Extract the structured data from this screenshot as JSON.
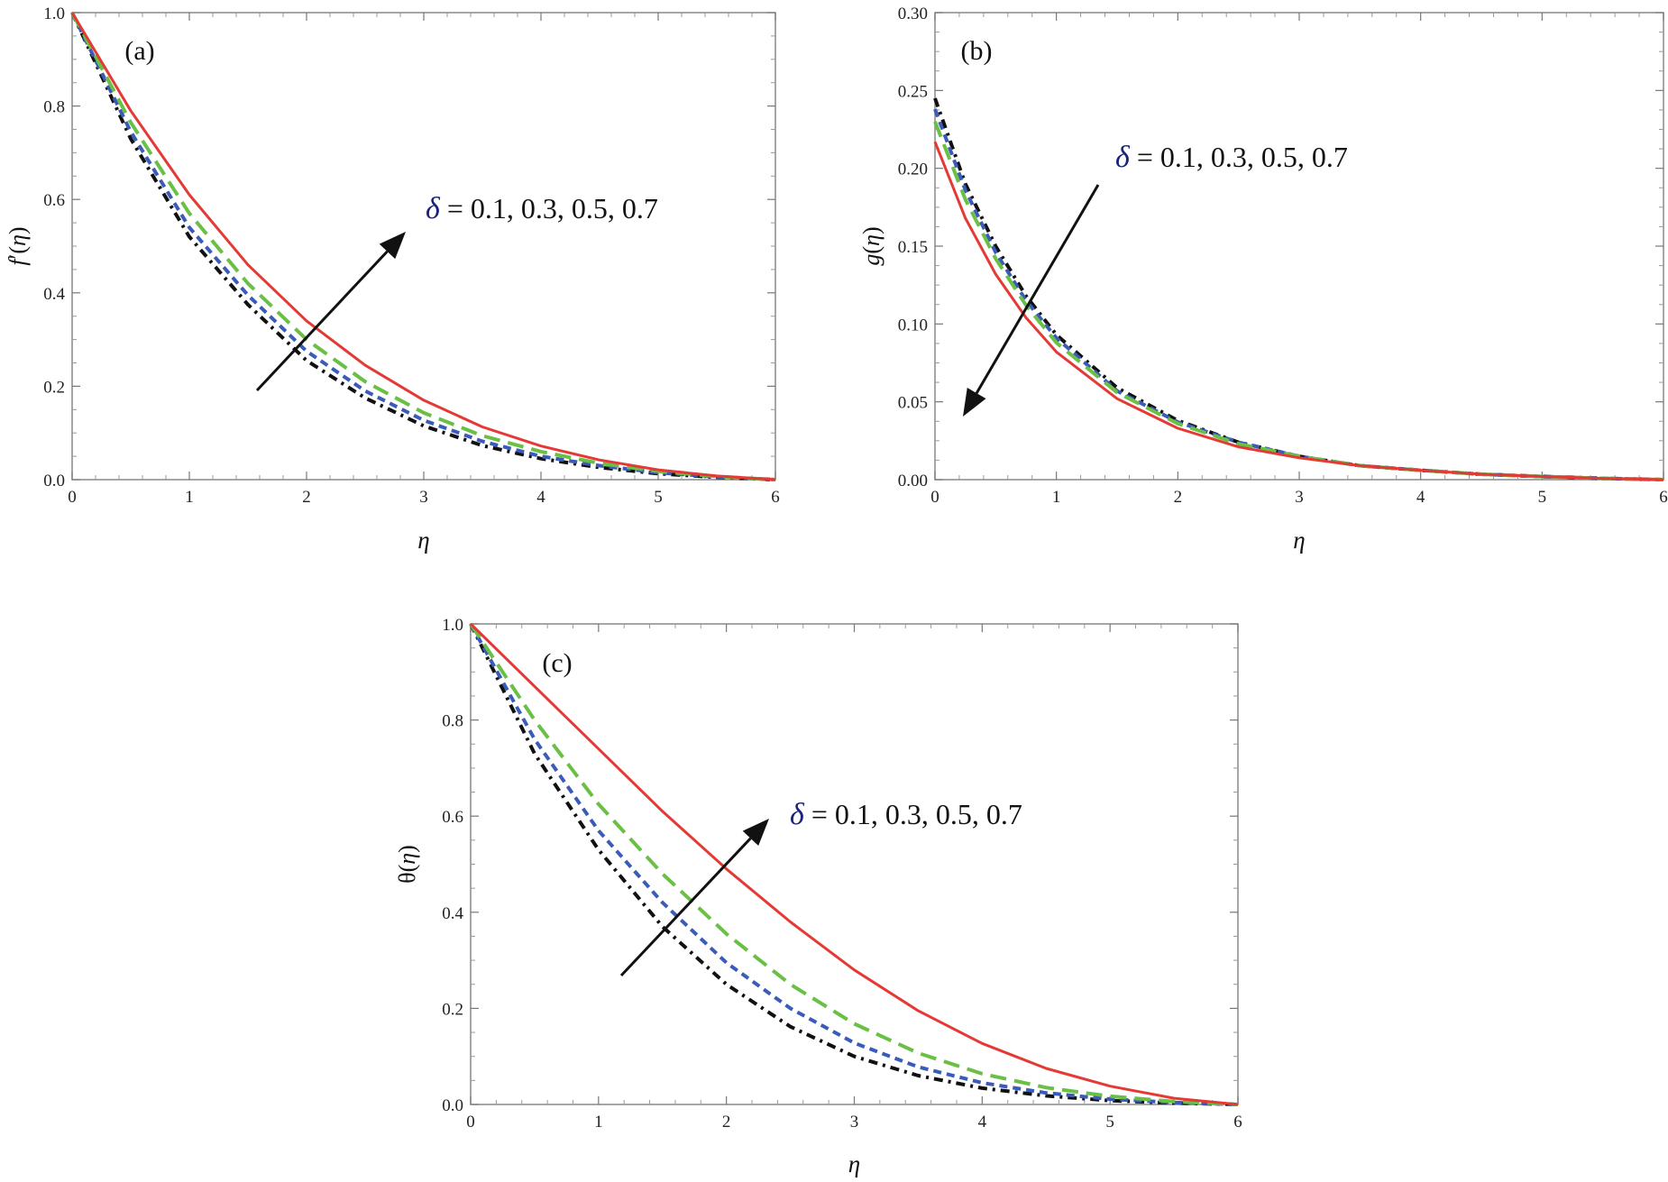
{
  "chart_data": [
    {
      "type": "line",
      "panel_label": "(a)",
      "xlabel": "η",
      "ylabel_parts": [
        "f",
        "′(",
        "η",
        ")"
      ],
      "xlim": [
        0,
        6
      ],
      "ylim": [
        0,
        1.0
      ],
      "xticks": [
        "0",
        "1",
        "2",
        "3",
        "4",
        "5",
        "6"
      ],
      "yticks": [
        "0.0",
        "0.2",
        "0.4",
        "0.6",
        "0.8",
        "1.0"
      ],
      "annotation": {
        "symbol": "δ",
        "text": " = 0.1, 0.3, 0.5, 0.7",
        "arrow": "up"
      },
      "series": [
        {
          "name": "δ = 0.1",
          "style": "dashdot",
          "color": "#111111",
          "x": [
            0,
            0.5,
            1,
            1.5,
            2,
            2.5,
            3,
            3.5,
            4,
            4.5,
            5,
            5.5,
            6
          ],
          "y": [
            1.0,
            0.73,
            0.52,
            0.375,
            0.255,
            0.175,
            0.115,
            0.073,
            0.045,
            0.026,
            0.013,
            0.005,
            0.0
          ]
        },
        {
          "name": "δ = 0.3",
          "style": "dotted",
          "color": "#3a5bb8",
          "x": [
            0,
            0.5,
            1,
            1.5,
            2,
            2.5,
            3,
            3.5,
            4,
            4.5,
            5,
            5.5,
            6
          ],
          "y": [
            1.0,
            0.745,
            0.54,
            0.395,
            0.275,
            0.19,
            0.127,
            0.082,
            0.05,
            0.03,
            0.015,
            0.006,
            0.0
          ]
        },
        {
          "name": "δ = 0.5",
          "style": "dashed",
          "color": "#6abf45",
          "x": [
            0,
            0.5,
            1,
            1.5,
            2,
            2.5,
            3,
            3.5,
            4,
            4.5,
            5,
            5.5,
            6
          ],
          "y": [
            1.0,
            0.765,
            0.57,
            0.42,
            0.3,
            0.21,
            0.143,
            0.094,
            0.06,
            0.035,
            0.018,
            0.007,
            0.0
          ]
        },
        {
          "name": "δ = 0.7",
          "style": "solid",
          "color": "#e53935",
          "x": [
            0,
            0.5,
            1,
            1.5,
            2,
            2.5,
            3,
            3.5,
            4,
            4.5,
            5,
            5.5,
            6
          ],
          "y": [
            1.0,
            0.79,
            0.61,
            0.46,
            0.34,
            0.245,
            0.17,
            0.113,
            0.072,
            0.042,
            0.021,
            0.008,
            0.0
          ]
        }
      ]
    },
    {
      "type": "line",
      "panel_label": "(b)",
      "xlabel": "η",
      "ylabel_parts": [
        "g",
        "(",
        "η",
        ")"
      ],
      "xlim": [
        0,
        6
      ],
      "ylim": [
        0,
        0.3
      ],
      "xticks": [
        "0",
        "1",
        "2",
        "3",
        "4",
        "5",
        "6"
      ],
      "yticks": [
        "0.00",
        "0.05",
        "0.10",
        "0.15",
        "0.20",
        "0.25",
        "0.30"
      ],
      "annotation": {
        "symbol": "δ",
        "text": " = 0.1, 0.3, 0.5, 0.7",
        "arrow": "down"
      },
      "series": [
        {
          "name": "δ = 0.1",
          "style": "dashdot",
          "color": "#111111",
          "x": [
            0,
            0.25,
            0.5,
            0.75,
            1,
            1.5,
            2,
            2.5,
            3,
            3.5,
            4,
            4.5,
            5,
            5.5,
            6
          ],
          "y": [
            0.245,
            0.19,
            0.15,
            0.118,
            0.093,
            0.059,
            0.038,
            0.024,
            0.015,
            0.009,
            0.006,
            0.0035,
            0.002,
            0.0008,
            0.0
          ]
        },
        {
          "name": "δ = 0.3",
          "style": "dotted",
          "color": "#3a5bb8",
          "x": [
            0,
            0.25,
            0.5,
            0.75,
            1,
            1.5,
            2,
            2.5,
            3,
            3.5,
            4,
            4.5,
            5,
            5.5,
            6
          ],
          "y": [
            0.238,
            0.186,
            0.146,
            0.115,
            0.091,
            0.057,
            0.037,
            0.024,
            0.015,
            0.009,
            0.006,
            0.0035,
            0.002,
            0.0008,
            0.0
          ]
        },
        {
          "name": "δ = 0.5",
          "style": "dashed",
          "color": "#6abf45",
          "x": [
            0,
            0.25,
            0.5,
            0.75,
            1,
            1.5,
            2,
            2.5,
            3,
            3.5,
            4,
            4.5,
            5,
            5.5,
            6
          ],
          "y": [
            0.23,
            0.18,
            0.142,
            0.112,
            0.088,
            0.056,
            0.036,
            0.023,
            0.015,
            0.009,
            0.006,
            0.0035,
            0.002,
            0.0008,
            0.0
          ]
        },
        {
          "name": "δ = 0.7",
          "style": "solid",
          "color": "#e53935",
          "x": [
            0,
            0.25,
            0.5,
            0.75,
            1,
            1.5,
            2,
            2.5,
            3,
            3.5,
            4,
            4.5,
            5,
            5.5,
            6
          ],
          "y": [
            0.217,
            0.168,
            0.132,
            0.104,
            0.082,
            0.052,
            0.033,
            0.021,
            0.014,
            0.009,
            0.006,
            0.0035,
            0.002,
            0.0008,
            0.0
          ]
        }
      ]
    },
    {
      "type": "line",
      "panel_label": "(c)",
      "xlabel": "η",
      "ylabel_parts": [
        "θ",
        "(",
        "η",
        ")"
      ],
      "xlim": [
        0,
        6
      ],
      "ylim": [
        0,
        1.0
      ],
      "xticks": [
        "0",
        "1",
        "2",
        "3",
        "4",
        "5",
        "6"
      ],
      "yticks": [
        "0.0",
        "0.2",
        "0.4",
        "0.6",
        "0.8",
        "1.0"
      ],
      "annotation": {
        "symbol": "δ",
        "text": " = 0.1, 0.3, 0.5, 0.7",
        "arrow": "up"
      },
      "series": [
        {
          "name": "δ = 0.1",
          "style": "dashdot",
          "color": "#111111",
          "x": [
            0,
            0.5,
            1,
            1.5,
            2,
            2.5,
            3,
            3.5,
            4,
            4.5,
            5,
            5.5,
            6
          ],
          "y": [
            1.0,
            0.73,
            0.53,
            0.37,
            0.25,
            0.162,
            0.1,
            0.06,
            0.034,
            0.018,
            0.008,
            0.003,
            0.0
          ]
        },
        {
          "name": "δ = 0.3",
          "style": "dotted",
          "color": "#3a5bb8",
          "x": [
            0,
            0.5,
            1,
            1.5,
            2,
            2.5,
            3,
            3.5,
            4,
            4.5,
            5,
            5.5,
            6
          ],
          "y": [
            1.0,
            0.76,
            0.57,
            0.42,
            0.295,
            0.2,
            0.128,
            0.078,
            0.045,
            0.024,
            0.011,
            0.004,
            0.0
          ]
        },
        {
          "name": "δ = 0.5",
          "style": "dashed",
          "color": "#6abf45",
          "x": [
            0,
            0.5,
            1,
            1.5,
            2,
            2.5,
            3,
            3.5,
            4,
            4.5,
            5,
            5.5,
            6
          ],
          "y": [
            1.0,
            0.8,
            0.625,
            0.48,
            0.355,
            0.25,
            0.168,
            0.107,
            0.064,
            0.035,
            0.017,
            0.006,
            0.0
          ]
        },
        {
          "name": "δ = 0.7",
          "style": "solid",
          "color": "#e53935",
          "x": [
            0,
            0.5,
            1,
            1.5,
            2,
            2.5,
            3,
            3.5,
            4,
            4.5,
            5,
            5.5,
            6
          ],
          "y": [
            1.0,
            0.87,
            0.74,
            0.61,
            0.49,
            0.38,
            0.28,
            0.195,
            0.127,
            0.075,
            0.038,
            0.013,
            0.0
          ]
        }
      ]
    }
  ]
}
